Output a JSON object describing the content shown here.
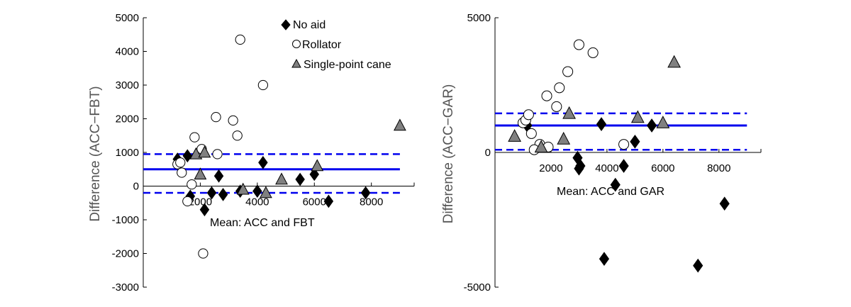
{
  "legend": {
    "entries": [
      {
        "label": "No aid",
        "marker": "diamond",
        "color": "#000000"
      },
      {
        "label": "Rollator",
        "marker": "circle",
        "color": "#ffffff"
      },
      {
        "label": "Single-point cane",
        "marker": "triangle",
        "color": "#808080"
      }
    ]
  },
  "chart_data": [
    {
      "type": "scatter",
      "title": "",
      "xlabel": "Mean: ACC and FBT",
      "ylabel": "Difference  (ACC−FBT)",
      "xlim": [
        0,
        9500
      ],
      "ylim": [
        -3000,
        5000
      ],
      "xticks": [
        2000,
        4000,
        6000,
        8000
      ],
      "yticks": [
        -3000,
        -2000,
        -1000,
        0,
        1000,
        2000,
        3000,
        4000,
        5000
      ],
      "grid": false,
      "legend_position": "top-center",
      "colors": {
        "mean_line": "#0000ee",
        "limit_line": "#0000ee"
      },
      "mean_line": 500,
      "limits_of_agreement": [
        -200,
        950
      ],
      "series": [
        {
          "name": "No aid",
          "marker": "diamond",
          "x": [
            1200,
            1550,
            1650,
            2150,
            2400,
            2650,
            2800,
            3400,
            4000,
            4200,
            5500,
            6000,
            6500,
            7800
          ],
          "y": [
            800,
            900,
            -300,
            -700,
            -200,
            300,
            -250,
            -150,
            -150,
            700,
            200,
            350,
            -450,
            -200
          ]
        },
        {
          "name": "Rollator",
          "marker": "circle",
          "x": [
            1200,
            1300,
            1350,
            1550,
            1700,
            1800,
            2050,
            2550,
            2600,
            3150,
            3300,
            3400,
            4200,
            2100
          ],
          "y": [
            650,
            700,
            400,
            -450,
            50,
            1450,
            1100,
            2050,
            950,
            1950,
            1500,
            4350,
            3000,
            -2000
          ]
        },
        {
          "name": "Single-point cane",
          "marker": "triangle",
          "x": [
            1850,
            2000,
            2150,
            3500,
            4300,
            4850,
            6100,
            9000
          ],
          "y": [
            950,
            350,
            1000,
            -100,
            -200,
            200,
            600,
            1800
          ]
        }
      ]
    },
    {
      "type": "scatter",
      "title": "",
      "xlabel": "Mean: ACC and GAR",
      "ylabel": "Difference  (ACC−GAR)",
      "xlim": [
        0,
        9500
      ],
      "ylim": [
        -5000,
        5000
      ],
      "xticks": [
        2000,
        4000,
        6000,
        8000
      ],
      "yticks": [
        -5000,
        0,
        5000
      ],
      "grid": false,
      "colors": {
        "mean_line": "#0000ee",
        "limit_line": "#0000ee"
      },
      "mean_line": 1000,
      "limits_of_agreement": [
        100,
        1450
      ],
      "series": [
        {
          "name": "No aid",
          "marker": "diamond",
          "x": [
            1150,
            2950,
            3000,
            3050,
            3800,
            3900,
            4300,
            4600,
            5000,
            5600,
            7250,
            8200
          ],
          "y": [
            1000,
            -200,
            -600,
            -500,
            1050,
            -3950,
            -1200,
            -500,
            400,
            1000,
            -4200,
            -1900
          ]
        },
        {
          "name": "Rollator",
          "marker": "circle",
          "x": [
            1000,
            1100,
            1200,
            1300,
            1600,
            1850,
            1900,
            2200,
            2300,
            2600,
            3000,
            3500,
            4600,
            1400
          ],
          "y": [
            1100,
            1200,
            1400,
            700,
            300,
            2100,
            200,
            1700,
            2400,
            3000,
            4000,
            3700,
            300,
            100
          ]
        },
        {
          "name": "Single-point cane",
          "marker": "triangle",
          "x": [
            700,
            1650,
            2650,
            2450,
            5100,
            6000,
            6400
          ],
          "y": [
            600,
            200,
            1450,
            500,
            1300,
            1100,
            3350
          ]
        }
      ]
    }
  ]
}
